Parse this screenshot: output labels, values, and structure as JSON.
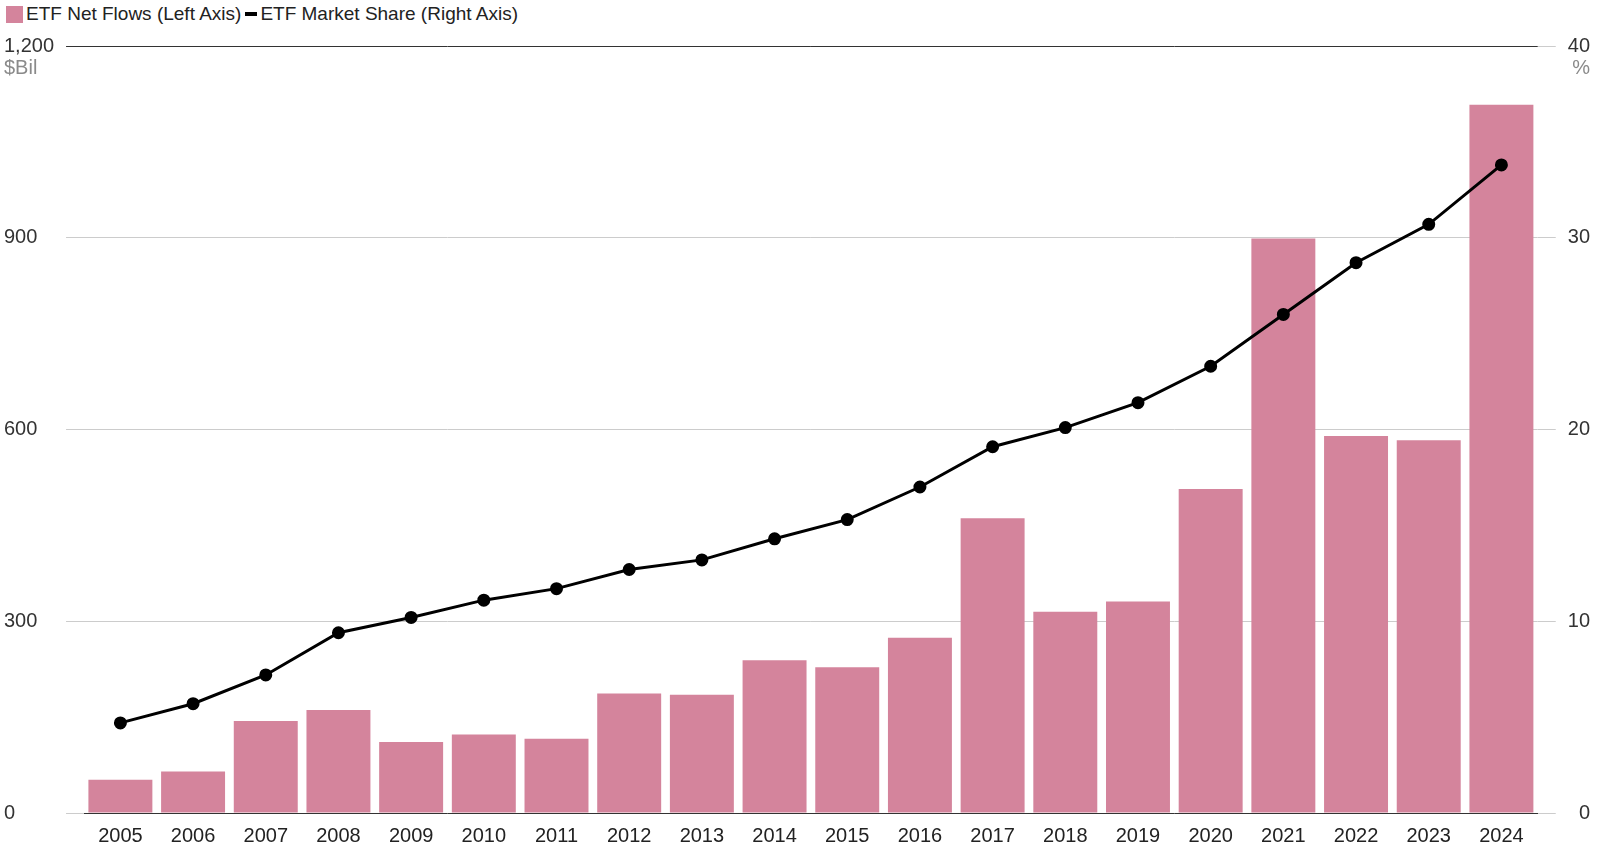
{
  "chart_data": {
    "type": "bar",
    "categories": [
      "2005",
      "2006",
      "2007",
      "2008",
      "2009",
      "2010",
      "2011",
      "2012",
      "2013",
      "2014",
      "2015",
      "2016",
      "2017",
      "2018",
      "2019",
      "2020",
      "2021",
      "2022",
      "2023",
      "2024"
    ],
    "series": [
      {
        "name": "ETF Net Flows (Left Axis)",
        "type": "bar",
        "color": "#d4849c",
        "values": [
          52,
          65,
          144,
          161,
          111,
          123,
          116,
          187,
          185,
          239,
          228,
          274,
          461,
          315,
          331,
          507,
          899,
          590,
          583,
          1108
        ]
      },
      {
        "name": "ETF Market Share (Right Axis)",
        "type": "line",
        "color": "#000000",
        "marker": "circle",
        "axis": "y2",
        "values": [
          4.7,
          5.7,
          7.2,
          9.4,
          10.2,
          11.1,
          11.7,
          12.7,
          13.2,
          14.3,
          15.3,
          17.0,
          19.1,
          20.1,
          21.4,
          23.3,
          26.0,
          28.7,
          30.7,
          33.8
        ]
      }
    ],
    "ylabel": "$Bil",
    "y2label": "%",
    "ylim": [
      0,
      1200
    ],
    "yticks": [
      0,
      300,
      600,
      900,
      {
        "value": 1200,
        "label": "1,200"
      }
    ],
    "y2lim": [
      0,
      40
    ],
    "y2ticks": [
      0,
      10,
      20,
      30,
      40
    ],
    "grid": true,
    "legend": "top-left"
  }
}
